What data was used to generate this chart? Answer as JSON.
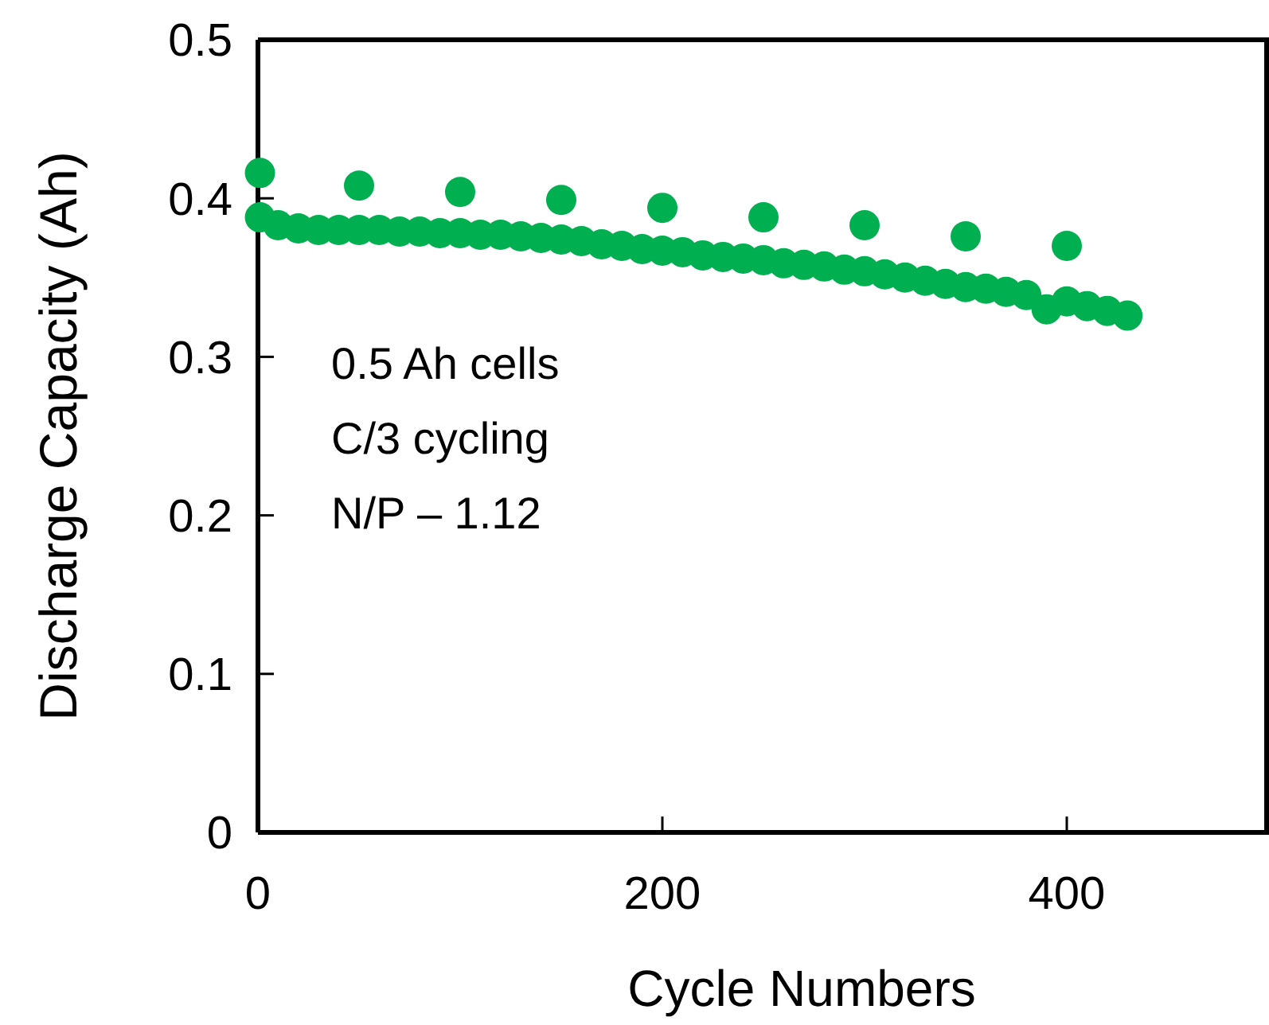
{
  "chart_data": {
    "type": "scatter",
    "xlabel": "Cycle Numbers",
    "ylabel": "Discharge Capacity (Ah)",
    "xlim": [
      0,
      500
    ],
    "xticks": [
      0,
      200,
      400
    ],
    "ylim": [
      0,
      0.5
    ],
    "yticks": [
      0,
      0.1,
      0.2,
      0.3,
      0.4,
      0.5
    ],
    "grid": false,
    "marker": "circle",
    "annotations": [
      "0.5 Ah cells",
      "C/3 cycling",
      "N/P – 1.12"
    ],
    "series": [
      {
        "color": "#00b050",
        "x": [
          1,
          50,
          100,
          150,
          200,
          250,
          300,
          350,
          400
        ],
        "values": [
          0.416,
          0.408,
          0.404,
          0.399,
          0.394,
          0.388,
          0.383,
          0.376,
          0.37
        ]
      },
      {
        "color": "#00b050",
        "x": [
          1,
          10,
          20,
          30,
          40,
          50,
          60,
          70,
          80,
          90,
          100,
          110,
          120,
          130,
          140,
          150,
          160,
          170,
          180,
          190,
          200,
          210,
          220,
          230,
          240,
          250,
          260,
          270,
          280,
          290,
          300,
          310,
          320,
          330,
          340,
          350,
          360,
          370,
          380,
          390,
          400,
          410,
          420,
          430
        ],
        "values": [
          0.388,
          0.383,
          0.381,
          0.38,
          0.38,
          0.38,
          0.38,
          0.379,
          0.379,
          0.378,
          0.378,
          0.377,
          0.377,
          0.376,
          0.375,
          0.374,
          0.373,
          0.371,
          0.37,
          0.368,
          0.367,
          0.366,
          0.364,
          0.363,
          0.362,
          0.361,
          0.359,
          0.358,
          0.357,
          0.355,
          0.354,
          0.352,
          0.35,
          0.348,
          0.346,
          0.344,
          0.343,
          0.341,
          0.339,
          0.33,
          0.335,
          0.332,
          0.329,
          0.326
        ]
      }
    ]
  }
}
